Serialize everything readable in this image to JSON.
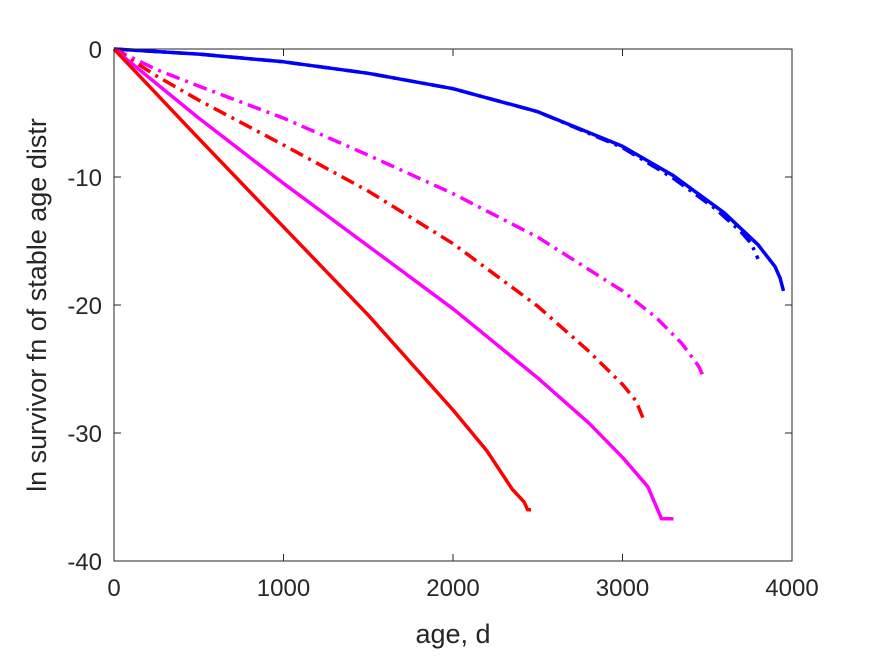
{
  "chart_data": {
    "type": "line",
    "title": "",
    "xlabel": "age, d",
    "ylabel": "ln survivor fn of stable age distr",
    "xlim": [
      0,
      4000
    ],
    "ylim": [
      -40,
      0
    ],
    "xticks": [
      0,
      1000,
      2000,
      3000,
      4000
    ],
    "yticks": [
      0,
      -10,
      -20,
      -30,
      -40
    ],
    "xtick_labels": [
      "0",
      "1000",
      "2000",
      "3000",
      "4000"
    ],
    "ytick_labels": [
      "0",
      "-10",
      "-20",
      "-30",
      "-40"
    ],
    "grid": false,
    "legend": "none",
    "series": [
      {
        "color": "#0000ff",
        "dash": "solid",
        "x": [
          0,
          500,
          1000,
          1500,
          2000,
          2500,
          3000,
          3300,
          3600,
          3800,
          3900,
          3930,
          3950
        ],
        "y": [
          0,
          -0.4,
          -1.0,
          -1.9,
          -3.1,
          -4.9,
          -7.6,
          -9.9,
          -12.8,
          -15.3,
          -17.0,
          -17.9,
          -18.9
        ]
      },
      {
        "color": "#0000ff",
        "dash": "dashdot",
        "x": [
          0,
          500,
          1000,
          1500,
          2000,
          2500,
          3000,
          3300,
          3550,
          3700,
          3760,
          3800
        ],
        "y": [
          0,
          -0.4,
          -1.0,
          -1.9,
          -3.1,
          -4.9,
          -7.7,
          -10.1,
          -12.5,
          -14.3,
          -15.2,
          -16.4
        ]
      },
      {
        "color": "#ff00ff",
        "dash": "dashdot",
        "x": [
          0,
          250,
          500,
          1000,
          1500,
          2000,
          2500,
          3000,
          3200,
          3350,
          3450,
          3480
        ],
        "y": [
          0,
          -1.6,
          -2.9,
          -5.4,
          -8.3,
          -11.3,
          -14.7,
          -18.9,
          -21.0,
          -23.0,
          -24.8,
          -25.7
        ]
      },
      {
        "color": "#ff0000",
        "dash": "dashdot",
        "x": [
          0,
          250,
          500,
          1000,
          1500,
          2000,
          2500,
          2800,
          3000,
          3080,
          3120
        ],
        "y": [
          0,
          -2.1,
          -4.0,
          -7.5,
          -11.1,
          -15.2,
          -20.1,
          -23.6,
          -26.2,
          -27.5,
          -28.8
        ]
      },
      {
        "color": "#ff00ff",
        "dash": "solid",
        "x": [
          0,
          500,
          1000,
          1500,
          2000,
          2500,
          2800,
          3000,
          3150,
          3230,
          3300
        ],
        "y": [
          0,
          -5.4,
          -10.5,
          -15.4,
          -20.3,
          -25.7,
          -29.2,
          -31.9,
          -34.2,
          -36.7,
          -36.7
        ]
      },
      {
        "color": "#ff0000",
        "dash": "solid",
        "x": [
          0,
          500,
          1000,
          1500,
          2000,
          2200,
          2350,
          2420,
          2440,
          2460
        ],
        "y": [
          0,
          -7.0,
          -13.9,
          -20.8,
          -28.2,
          -31.4,
          -34.4,
          -35.4,
          -36.0,
          -36.0
        ]
      }
    ]
  }
}
